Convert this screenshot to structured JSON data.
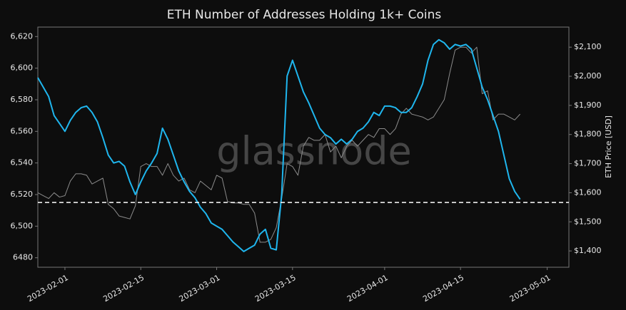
{
  "chart_data": {
    "type": "line",
    "title": "ETH Number of Addresses Holding 1k+ Coins",
    "watermark": "glassnode",
    "y2label": "ETH Price [USD]",
    "x": [
      "2023-01-27",
      "2023-01-28",
      "2023-01-29",
      "2023-01-30",
      "2023-01-31",
      "2023-02-01",
      "2023-02-02",
      "2023-02-03",
      "2023-02-04",
      "2023-02-05",
      "2023-02-06",
      "2023-02-07",
      "2023-02-08",
      "2023-02-09",
      "2023-02-10",
      "2023-02-11",
      "2023-02-12",
      "2023-02-13",
      "2023-02-14",
      "2023-02-15",
      "2023-02-16",
      "2023-02-17",
      "2023-02-18",
      "2023-02-19",
      "2023-02-20",
      "2023-02-21",
      "2023-02-22",
      "2023-02-23",
      "2023-02-24",
      "2023-02-25",
      "2023-02-26",
      "2023-02-27",
      "2023-02-28",
      "2023-03-01",
      "2023-03-02",
      "2023-03-03",
      "2023-03-04",
      "2023-03-05",
      "2023-03-06",
      "2023-03-07",
      "2023-03-08",
      "2023-03-09",
      "2023-03-10",
      "2023-03-11",
      "2023-03-12",
      "2023-03-13",
      "2023-03-14",
      "2023-03-15",
      "2023-03-16",
      "2023-03-17",
      "2023-03-18",
      "2023-03-19",
      "2023-03-20",
      "2023-03-21",
      "2023-03-22",
      "2023-03-23",
      "2023-03-24",
      "2023-03-25",
      "2023-03-26",
      "2023-03-27",
      "2023-03-28",
      "2023-03-29",
      "2023-03-30",
      "2023-03-31",
      "2023-04-01",
      "2023-04-02",
      "2023-04-03",
      "2023-04-04",
      "2023-04-05",
      "2023-04-06",
      "2023-04-07",
      "2023-04-08",
      "2023-04-09",
      "2023-04-10",
      "2023-04-11",
      "2023-04-12",
      "2023-04-13",
      "2023-04-14",
      "2023-04-15",
      "2023-04-16",
      "2023-04-17",
      "2023-04-18",
      "2023-04-19",
      "2023-04-20",
      "2023-04-21",
      "2023-04-22",
      "2023-04-23",
      "2023-04-24",
      "2023-04-25",
      "2023-04-26"
    ],
    "series": [
      {
        "name": "Addresses",
        "color": "#1fb6ee",
        "values": [
          6594,
          6588,
          6582,
          6570,
          6565,
          6560,
          6567,
          6572,
          6575,
          6576,
          6572,
          6566,
          6556,
          6545,
          6540,
          6541,
          6538,
          6528,
          6520,
          6528,
          6535,
          6540,
          6546,
          6562,
          6555,
          6545,
          6535,
          6528,
          6522,
          6518,
          6512,
          6508,
          6502,
          6500,
          6498,
          6494,
          6490,
          6487,
          6484,
          6486,
          6488,
          6495,
          6498,
          6486,
          6485,
          6520,
          6595,
          6605,
          6595,
          6585,
          6578,
          6570,
          6562,
          6558,
          6556,
          6552,
          6555,
          6552,
          6555,
          6560,
          6562,
          6566,
          6572,
          6570,
          6576,
          6576,
          6575,
          6572,
          6572,
          6575,
          6582,
          6590,
          6605,
          6615,
          6618,
          6616,
          6612,
          6615,
          6614,
          6615,
          6612,
          6600,
          6588,
          6580,
          6570,
          6560,
          6545,
          6530,
          6522,
          6517
        ]
      },
      {
        "name": "ETH Price",
        "color": "#8c8c8c",
        "axis": "y2",
        "values": [
          1600,
          1590,
          1580,
          1600,
          1585,
          1590,
          1640,
          1665,
          1665,
          1660,
          1630,
          1640,
          1650,
          1560,
          1545,
          1520,
          1515,
          1510,
          1555,
          1690,
          1700,
          1690,
          1690,
          1660,
          1700,
          1660,
          1640,
          1650,
          1610,
          1600,
          1640,
          1625,
          1610,
          1660,
          1650,
          1570,
          1565,
          1565,
          1560,
          1560,
          1530,
          1430,
          1430,
          1440,
          1480,
          1580,
          1700,
          1690,
          1660,
          1760,
          1790,
          1780,
          1780,
          1800,
          1740,
          1760,
          1720,
          1760,
          1780,
          1760,
          1780,
          1800,
          1790,
          1820,
          1820,
          1800,
          1820,
          1870,
          1890,
          1870,
          1865,
          1860,
          1850,
          1860,
          1890,
          1920,
          2010,
          2090,
          2100,
          2100,
          2080,
          2100,
          1940,
          1950,
          1850,
          1870,
          1870,
          1860,
          1850,
          1870
        ]
      }
    ],
    "reference_line": 6515,
    "xlim": [
      "2023-01-27",
      "2023-05-05"
    ],
    "xticks": [
      "2023-02-01",
      "2023-02-15",
      "2023-03-01",
      "2023-03-15",
      "2023-04-01",
      "2023-04-15",
      "2023-05-01"
    ],
    "ylim": [
      6474,
      6626
    ],
    "yticks": [
      6480,
      {
        "value": 6500,
        "label": "6,500"
      },
      {
        "value": 6520,
        "label": "6,520"
      },
      {
        "value": 6540,
        "label": "6,540"
      },
      {
        "value": 6560,
        "label": "6,560"
      },
      {
        "value": 6580,
        "label": "6,580"
      },
      {
        "value": 6600,
        "label": "6,600"
      },
      {
        "value": 6620,
        "label": "6,620"
      }
    ],
    "y2lim": [
      1344,
      2169
    ],
    "y2ticks": [
      {
        "value": 1400,
        "label": "$1,400"
      },
      {
        "value": 1500,
        "label": "$1,500"
      },
      {
        "value": 1600,
        "label": "$1,600"
      },
      {
        "value": 1700,
        "label": "$1,700"
      },
      {
        "value": 1800,
        "label": "$1,800"
      },
      {
        "value": 1900,
        "label": "$1,900"
      },
      {
        "value": 2000,
        "label": "$2,000"
      },
      {
        "value": 2100,
        "label": "$2,100"
      }
    ]
  }
}
